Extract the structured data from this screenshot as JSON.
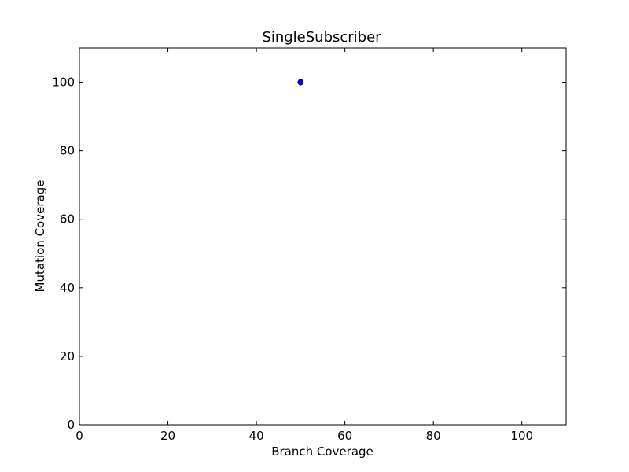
{
  "chart_data": {
    "type": "scatter",
    "title": "SingleSubscriber",
    "xlabel": "Branch Coverage",
    "ylabel": "Mutation Coverage",
    "xlim": [
      0,
      110
    ],
    "ylim": [
      0,
      110
    ],
    "xticks": [
      0,
      20,
      40,
      60,
      80,
      100
    ],
    "yticks": [
      0,
      20,
      40,
      60,
      80,
      100
    ],
    "grid": false,
    "series": [
      {
        "points": [
          {
            "x": 50,
            "y": 100
          }
        ],
        "color": "#0000ff"
      }
    ]
  }
}
